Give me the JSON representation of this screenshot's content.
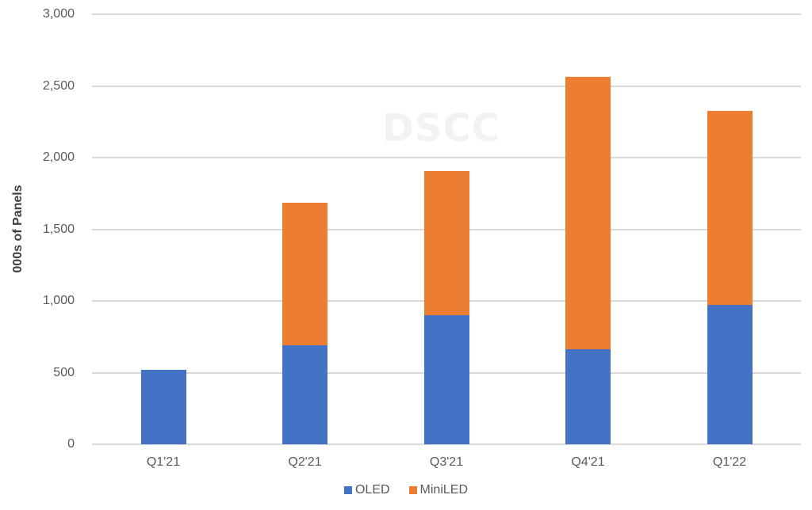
{
  "chart_data": {
    "type": "bar",
    "stacked": true,
    "title": "",
    "xlabel": "",
    "ylabel": "000s of Panels",
    "ylim": [
      0,
      3000
    ],
    "yticks": [
      0,
      500,
      1000,
      1500,
      2000,
      2500,
      3000
    ],
    "ytick_labels": [
      "0",
      "500",
      "1,000",
      "1,500",
      "2,000",
      "2,500",
      "3,000"
    ],
    "grid": true,
    "legend_position": "bottom",
    "categories": [
      "Q1'21",
      "Q2'21",
      "Q3'21",
      "Q4'21",
      "Q1'22"
    ],
    "series": [
      {
        "name": "OLED",
        "color": "#4472c4",
        "values": [
          520,
          690,
          900,
          665,
          970
        ]
      },
      {
        "name": "MiniLED",
        "color": "#ed7d31",
        "values": [
          0,
          995,
          1005,
          1900,
          1355
        ]
      }
    ],
    "totals": [
      520,
      1685,
      1905,
      2565,
      2325
    ],
    "watermark": "DSCC"
  }
}
